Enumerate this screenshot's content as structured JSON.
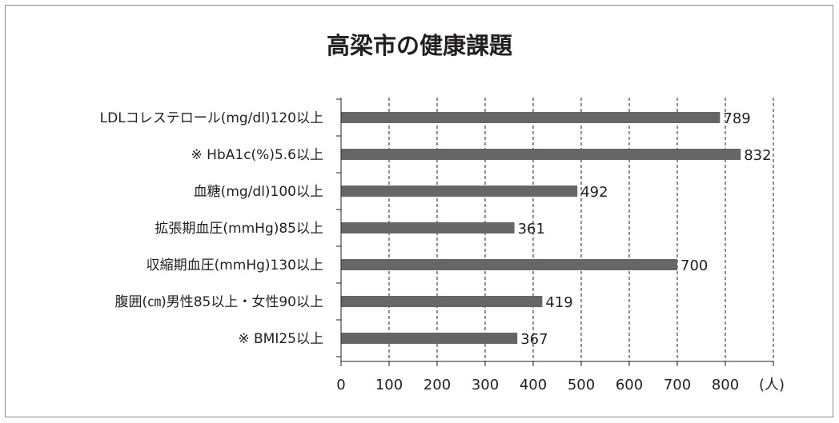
{
  "chart_data": {
    "type": "bar",
    "orientation": "horizontal",
    "title": "高梁市の健康課題",
    "categories": [
      "LDLコレステロール(mg/dl)120以上",
      "※ HbA1c(%)5.6以上",
      "血糖(mg/dl)100以上",
      "拡張期血圧(mmHg)85以上",
      "収縮期血圧(mmHg)130以上",
      "腹囲(㎝)男性85以上・女性90以上",
      "※ BMI25以上"
    ],
    "values": [
      789,
      832,
      492,
      361,
      700,
      419,
      367
    ],
    "xlim": [
      0,
      900
    ],
    "xticks": [
      0,
      100,
      200,
      300,
      400,
      500,
      600,
      700,
      800
    ],
    "xunit": "(人)",
    "grid": "vertical dashed",
    "bar_color": "#666666"
  }
}
